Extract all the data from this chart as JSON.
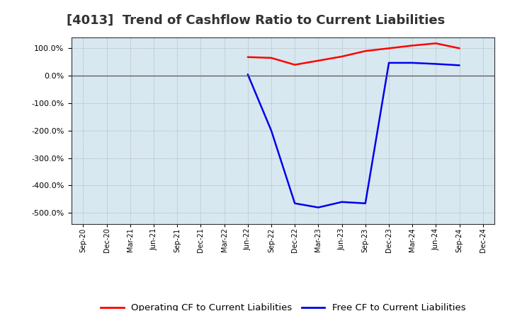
{
  "title": "[4013]  Trend of Cashflow Ratio to Current Liabilities",
  "x_labels": [
    "Sep-20",
    "Dec-20",
    "Mar-21",
    "Jun-21",
    "Sep-21",
    "Dec-21",
    "Mar-22",
    "Jun-22",
    "Sep-22",
    "Dec-22",
    "Mar-23",
    "Jun-23",
    "Sep-23",
    "Dec-23",
    "Mar-24",
    "Jun-24",
    "Sep-24",
    "Dec-24"
  ],
  "operating_cf": [
    null,
    null,
    null,
    null,
    null,
    null,
    null,
    68.0,
    65.0,
    40.0,
    55.0,
    70.0,
    90.0,
    100.0,
    110.0,
    118.0,
    100.0,
    null
  ],
  "free_cf": [
    null,
    null,
    null,
    null,
    null,
    null,
    null,
    5.0,
    -200.0,
    -465.0,
    -480.0,
    -460.0,
    -465.0,
    47.0,
    47.0,
    43.0,
    38.0,
    null
  ],
  "ylim": [
    -540,
    140
  ],
  "yticks": [
    100.0,
    0.0,
    -100.0,
    -200.0,
    -300.0,
    -400.0,
    -500.0
  ],
  "operating_color": "#FF0000",
  "free_color": "#0000EE",
  "background_color": "#FFFFFF",
  "plot_bg_color": "#D8E8F0",
  "grid_color": "#999999",
  "title_fontsize": 13,
  "legend_fontsize": 9.5
}
